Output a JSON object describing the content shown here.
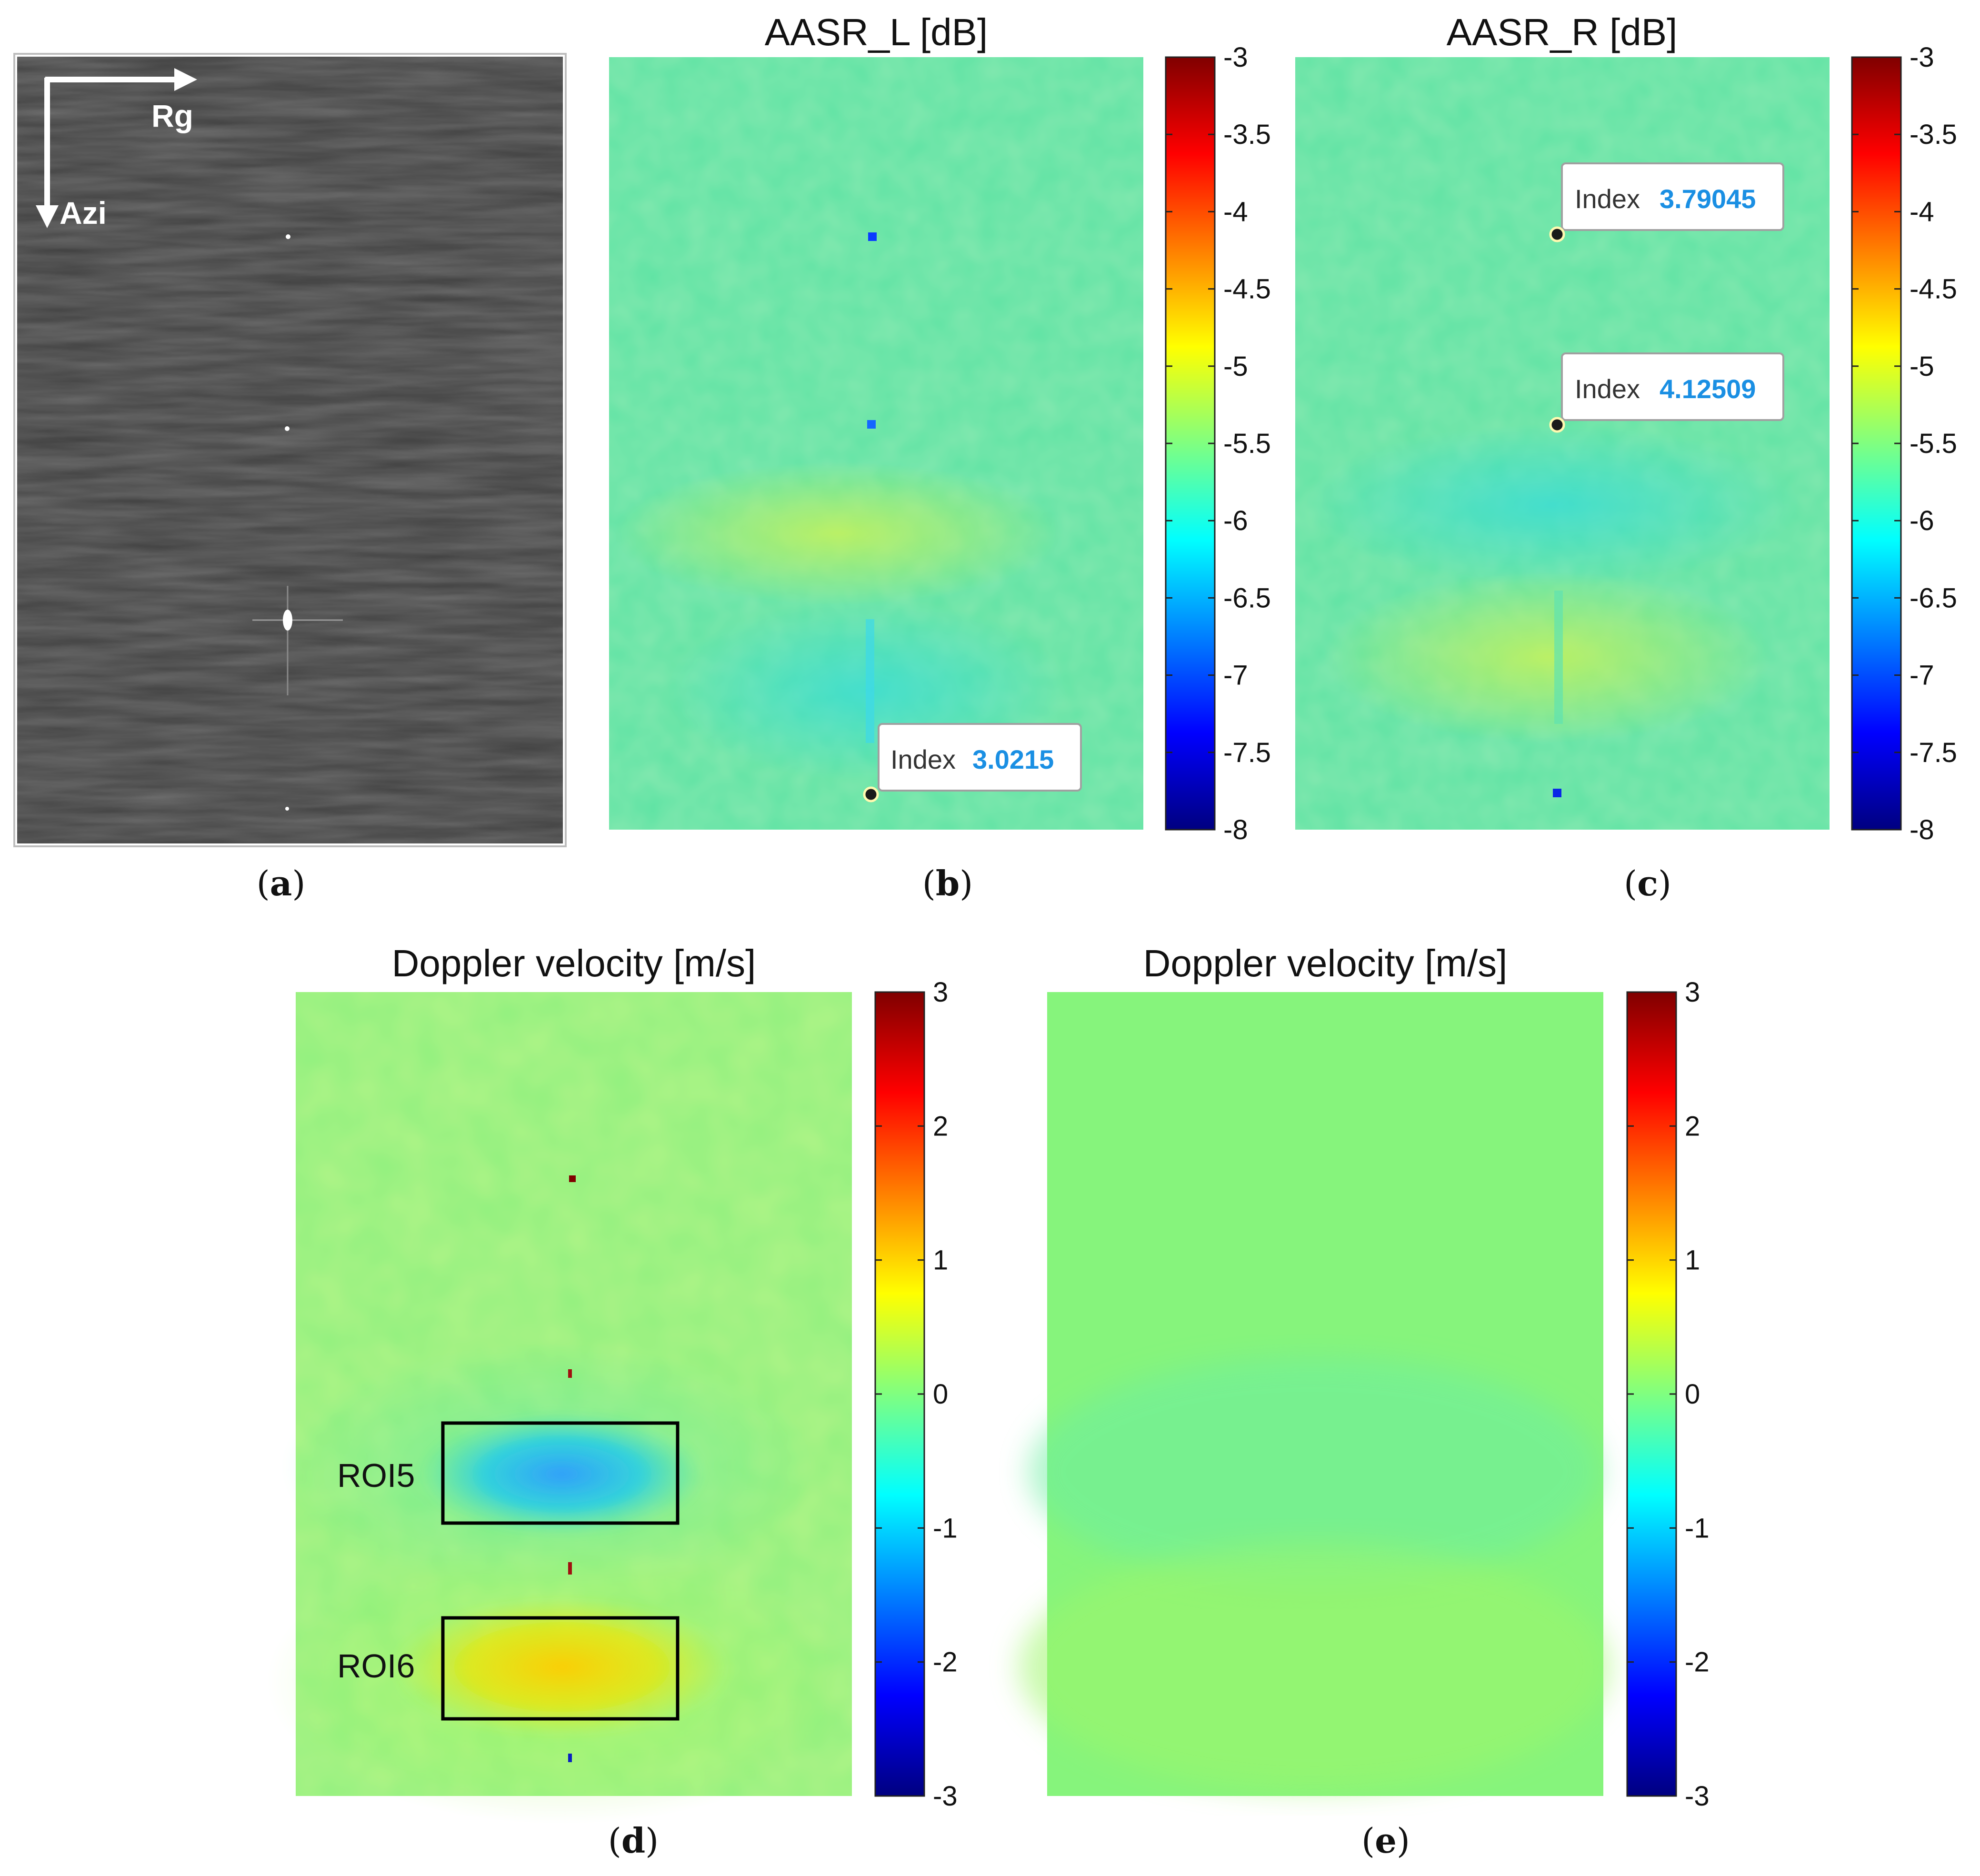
{
  "panels": {
    "a": {
      "label": "a",
      "axis_range": "Rg",
      "axis_azimuth": "Azi",
      "colors": {
        "background": "#3f3f3f",
        "target": "#ffffff"
      }
    },
    "b": {
      "label": "b",
      "title": "AASR_L  [dB]",
      "colorbar": {
        "min": -8,
        "max": -3,
        "ticks": [
          "-3",
          "-3.5",
          "-4",
          "-4.5",
          "-5",
          "-5.5",
          "-6",
          "-6.5",
          "-7",
          "-7.5",
          "-8"
        ],
        "colormap": "jet"
      },
      "datatips": [
        {
          "label": "Index",
          "value": "3.0215"
        }
      ]
    },
    "c": {
      "label": "c",
      "title": "AASR_R  [dB]",
      "colorbar": {
        "min": -8,
        "max": -3,
        "ticks": [
          "-3",
          "-3.5",
          "-4",
          "-4.5",
          "-5",
          "-5.5",
          "-6",
          "-6.5",
          "-7",
          "-7.5",
          "-8"
        ],
        "colormap": "jet"
      },
      "datatips": [
        {
          "label": "Index",
          "value": "3.79045"
        },
        {
          "label": "Index",
          "value": "4.12509"
        }
      ]
    },
    "d": {
      "label": "d",
      "title": "Doppler  velocity  [m/s]",
      "colorbar": {
        "min": -3,
        "max": 3,
        "ticks": [
          "3",
          "2",
          "1",
          "0",
          "-1",
          "-2",
          "-3"
        ],
        "colormap": "jet"
      },
      "rois": [
        {
          "label": "ROI5"
        },
        {
          "label": "ROI6"
        }
      ]
    },
    "e": {
      "label": "e",
      "title": "Doppler  velocity  [m/s]",
      "colorbar": {
        "min": -3,
        "max": 3,
        "ticks": [
          "3",
          "2",
          "1",
          "0",
          "-1",
          "-2",
          "-3"
        ],
        "colormap": "jet"
      }
    }
  }
}
